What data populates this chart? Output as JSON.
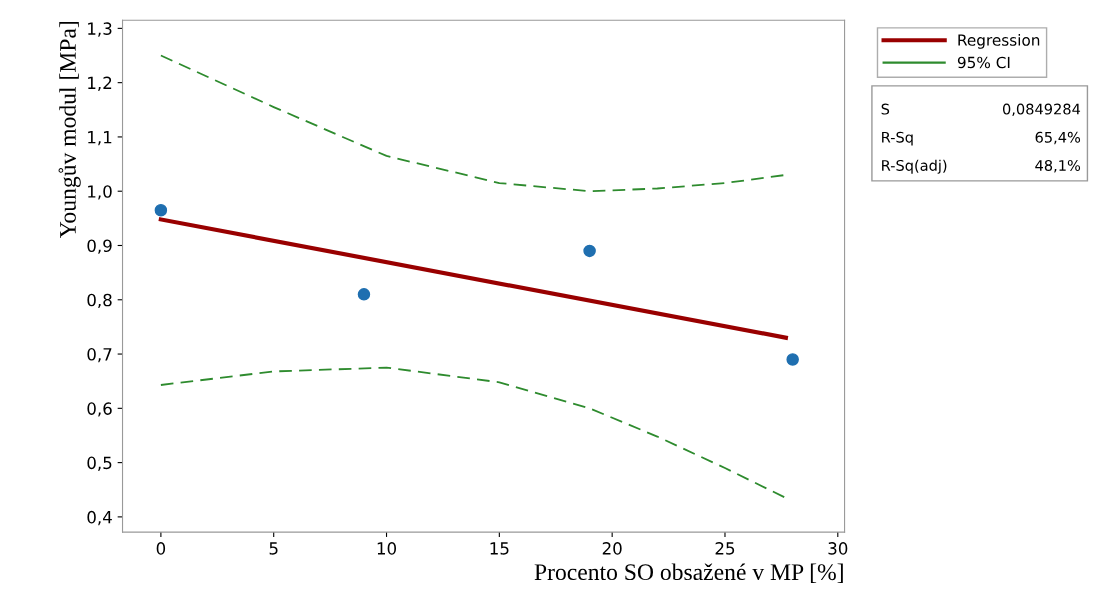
{
  "chart_data": {
    "type": "scatter",
    "xlabel": "Procento SO obsažené v MP [%]",
    "ylabel": "Youngův modul [MPa]",
    "xlim": [
      -1.7,
      30.3
    ],
    "ylim": [
      0.372,
      1.315
    ],
    "xticks": [
      0,
      5,
      10,
      15,
      20,
      25,
      30
    ],
    "yticks": [
      {
        "value": 0.4,
        "label": "0,4"
      },
      {
        "value": 0.5,
        "label": "0,5"
      },
      {
        "value": 0.6,
        "label": "0,6"
      },
      {
        "value": 0.7,
        "label": "0,7"
      },
      {
        "value": 0.8,
        "label": "0,8"
      },
      {
        "value": 0.9,
        "label": "0,9"
      },
      {
        "value": 1.0,
        "label": "1,0"
      },
      {
        "value": 1.1,
        "label": "1,1"
      },
      {
        "value": 1.2,
        "label": "1,2"
      },
      {
        "value": 1.3,
        "label": "1,3"
      }
    ],
    "grid": false,
    "legend": "right",
    "series": [
      {
        "marker": "circle",
        "color": "#1f6fb0",
        "x": [
          0,
          9,
          19,
          28
        ],
        "values": [
          0.965,
          0.81,
          0.89,
          0.69
        ]
      },
      {
        "type": "line",
        "name": "Regression",
        "color": "#990000",
        "line_style": "solid",
        "x": [
          0,
          27.7
        ],
        "values": [
          0.948,
          0.73
        ]
      },
      {
        "type": "line",
        "name": "95% CI",
        "color": "#2e8b2e",
        "line_style": "dashed",
        "x": [
          0,
          5,
          10,
          15,
          19,
          22,
          25,
          27.7
        ],
        "values": [
          1.25,
          1.155,
          1.065,
          1.015,
          1.0,
          1.005,
          1.015,
          1.03
        ]
      },
      {
        "type": "line",
        "color": "#2e8b2e",
        "line_style": "dashed",
        "x": [
          0,
          5,
          10,
          15,
          19,
          22,
          25,
          27.7
        ],
        "values": [
          0.643,
          0.668,
          0.675,
          0.648,
          0.6,
          0.548,
          0.49,
          0.435
        ]
      }
    ],
    "annotations": [
      "S",
      "0,0849284",
      "R-Sq",
      "65,4%",
      "R-Sq(adj)",
      "48,1%"
    ]
  }
}
